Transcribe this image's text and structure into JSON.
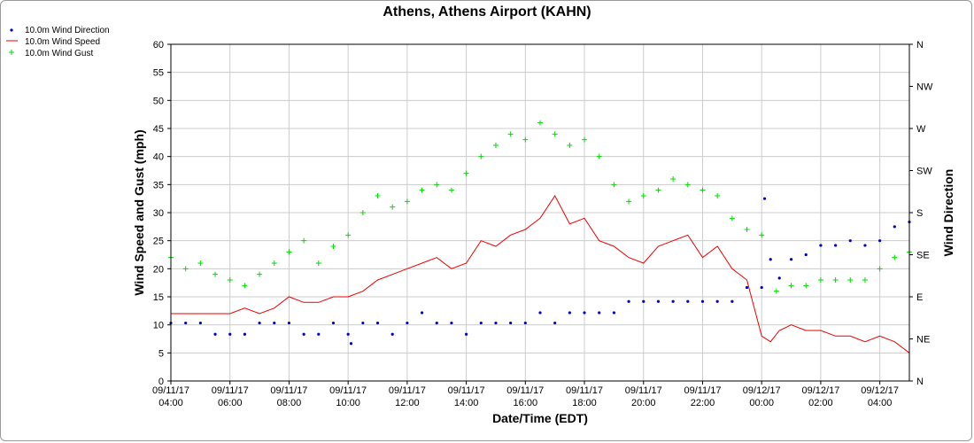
{
  "chart_data": {
    "type": "line",
    "title": "Athens, Athens Airport (KAHN)",
    "xlabel": "Date/Time (EDT)",
    "ylabel": "Wind Speed and Gust (mph)",
    "y2label": "Wind Direction",
    "ylim": [
      0,
      60
    ],
    "yticks": [
      0,
      5,
      10,
      15,
      20,
      25,
      30,
      35,
      40,
      45,
      50,
      55,
      60
    ],
    "y2ticks": [
      "N",
      "NE",
      "E",
      "SE",
      "S",
      "SW",
      "W",
      "NW",
      "N"
    ],
    "xlim_hours": [
      0,
      25
    ],
    "xticks": [
      {
        "hour": 0,
        "date": "09/11/17",
        "time": "04:00"
      },
      {
        "hour": 2,
        "date": "09/11/17",
        "time": "06:00"
      },
      {
        "hour": 4,
        "date": "09/11/17",
        "time": "08:00"
      },
      {
        "hour": 6,
        "date": "09/11/17",
        "time": "10:00"
      },
      {
        "hour": 8,
        "date": "09/11/17",
        "time": "12:00"
      },
      {
        "hour": 10,
        "date": "09/11/17",
        "time": "14:00"
      },
      {
        "hour": 12,
        "date": "09/11/17",
        "time": "16:00"
      },
      {
        "hour": 14,
        "date": "09/11/17",
        "time": "18:00"
      },
      {
        "hour": 16,
        "date": "09/11/17",
        "time": "20:00"
      },
      {
        "hour": 18,
        "date": "09/11/17",
        "time": "22:00"
      },
      {
        "hour": 20,
        "date": "09/12/17",
        "time": "00:00"
      },
      {
        "hour": 22,
        "date": "09/12/17",
        "time": "02:00"
      },
      {
        "hour": 24,
        "date": "09/12/17",
        "time": "04:00"
      }
    ],
    "grid": true,
    "legend_position": "top-left",
    "series": [
      {
        "name": "10.0m Wind Direction",
        "color": "#0000cc",
        "marker": "dot",
        "axis": "right",
        "x": [
          0,
          0.5,
          1,
          1.5,
          2,
          2.5,
          3,
          3.5,
          4,
          4.5,
          5,
          5.5,
          6,
          6.1,
          6.5,
          7,
          7.5,
          8,
          8.5,
          9,
          9.5,
          10,
          10.5,
          11,
          11.5,
          12,
          12.5,
          13,
          13.5,
          14,
          14.5,
          15,
          15.5,
          16,
          16.5,
          17,
          17.5,
          18,
          18.5,
          19,
          19.5,
          20,
          20.1,
          20.3,
          20.6,
          21,
          21.5,
          22,
          22.5,
          23,
          23.5,
          24,
          24.5,
          25
        ],
        "y": [
          62,
          62,
          62,
          50,
          50,
          50,
          62,
          62,
          62,
          50,
          50,
          62,
          50,
          40,
          62,
          62,
          50,
          62,
          73,
          62,
          62,
          50,
          62,
          62,
          62,
          62,
          73,
          62,
          73,
          73,
          73,
          73,
          85,
          85,
          85,
          85,
          85,
          85,
          85,
          85,
          100,
          100,
          195,
          130,
          110,
          130,
          135,
          145,
          145,
          150,
          145,
          150,
          165,
          170
        ]
      },
      {
        "name": "10.0m Wind Speed",
        "color": "#ee0000",
        "marker": "line",
        "axis": "left",
        "x": [
          0,
          0.5,
          1,
          1.5,
          2,
          2.5,
          3,
          3.5,
          4,
          4.5,
          5,
          5.5,
          6,
          6.5,
          7,
          7.5,
          8,
          8.5,
          9,
          9.5,
          10,
          10.5,
          11,
          11.5,
          12,
          12.5,
          13,
          13.5,
          14,
          14.5,
          15,
          15.5,
          16,
          16.5,
          17,
          17.5,
          18,
          18.5,
          19,
          19.5,
          20,
          20.3,
          20.6,
          21,
          21.5,
          22,
          22.5,
          23,
          23.5,
          24,
          24.5,
          25
        ],
        "y": [
          12,
          12,
          12,
          12,
          12,
          13,
          12,
          13,
          15,
          14,
          14,
          15,
          15,
          16,
          18,
          19,
          20,
          21,
          22,
          20,
          21,
          25,
          24,
          26,
          27,
          29,
          33,
          28,
          29,
          25,
          24,
          22,
          21,
          24,
          25,
          26,
          22,
          24,
          20,
          18,
          8,
          7,
          9,
          10,
          9,
          9,
          8,
          8,
          7,
          8,
          7,
          5
        ]
      },
      {
        "name": "10.0m Wind Gust",
        "color": "#00dd00",
        "marker": "plus",
        "axis": "left",
        "x": [
          0,
          0.5,
          1,
          1.5,
          2,
          2.5,
          3,
          3.5,
          4,
          4.5,
          5,
          5.5,
          6,
          6.5,
          7,
          7.5,
          8,
          8.5,
          9,
          9.5,
          10,
          10.5,
          11,
          11.5,
          12,
          12.5,
          13,
          13.5,
          14,
          14.5,
          15,
          15.5,
          16,
          16.5,
          17,
          17.5,
          18,
          18.5,
          19,
          19.5,
          20,
          20.5,
          21,
          21.5,
          22,
          22.5,
          23,
          23.5,
          24,
          24.5,
          25
        ],
        "y": [
          22,
          20,
          21,
          19,
          18,
          17,
          19,
          21,
          23,
          25,
          21,
          24,
          26,
          30,
          33,
          31,
          32,
          34,
          35,
          34,
          37,
          40,
          42,
          44,
          43,
          46,
          44,
          42,
          43,
          40,
          35,
          32,
          33,
          34,
          36,
          35,
          34,
          33,
          29,
          27,
          26,
          16,
          17,
          17,
          18,
          18,
          18,
          18,
          20,
          22,
          23
        ]
      }
    ]
  }
}
